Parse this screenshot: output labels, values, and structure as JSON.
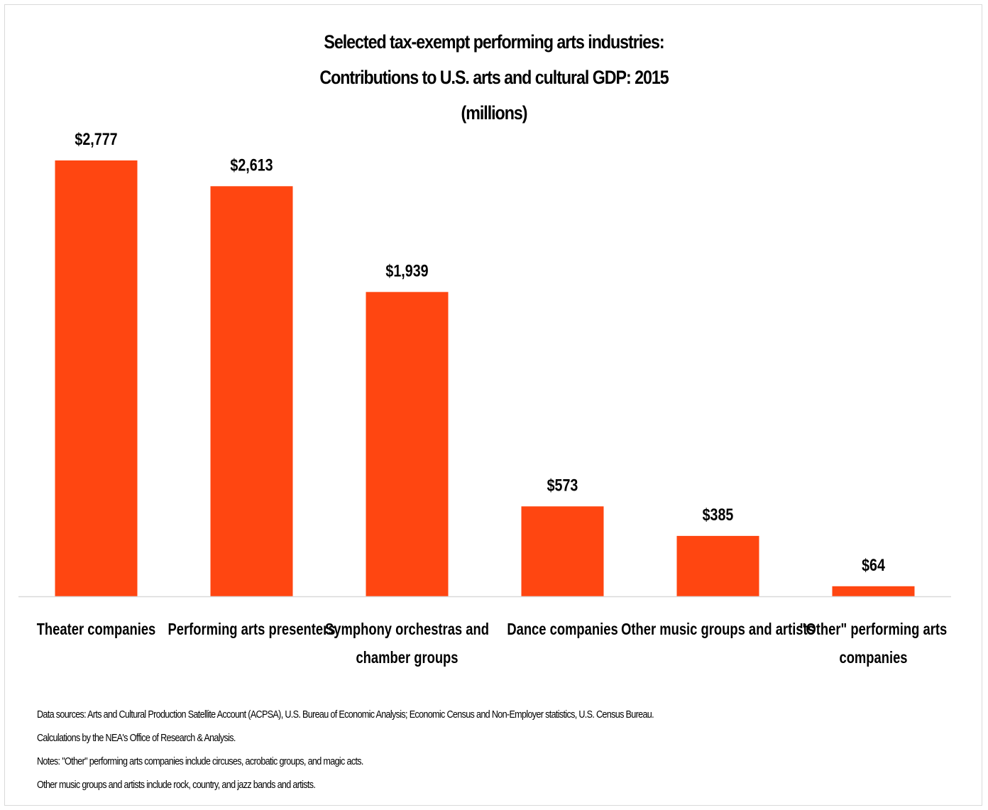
{
  "chart_data": {
    "type": "bar",
    "title": "Selected tax-exempt performing arts industries:",
    "subtitle": "Contributions to U.S. arts and cultural GDP: 2015",
    "unit_line": "(millions)",
    "categories": [
      "Theater companies",
      "Performing arts presenters",
      "Symphony orchestras and chamber groups",
      "Dance companies",
      "Other music groups and artists",
      "\"Other\" performing arts companies"
    ],
    "category_lines": [
      [
        "Theater companies"
      ],
      [
        "Performing arts presenters"
      ],
      [
        "Symphony orchestras and",
        "chamber groups"
      ],
      [
        "Dance companies"
      ],
      [
        "Other music groups and artists"
      ],
      [
        "\"Other\" performing arts",
        "companies"
      ]
    ],
    "values": [
      2777,
      2613,
      1939,
      573,
      385,
      64
    ],
    "data_labels": [
      "$2,777",
      "$2,613",
      "$1,939",
      "$573",
      "$385",
      "$64"
    ],
    "ylim": [
      0,
      2777
    ],
    "grid": false,
    "legend": "none",
    "bar_color": "#ff4611"
  },
  "notes": [
    "Data sources: Arts and Cultural Production Satellite Account (ACPSA), U.S. Bureau of Economic Analysis; Economic Census and Non-Employer statistics, U.S. Census Bureau.",
    "Calculations by the NEA's Office of Research & Analysis.",
    "Notes: \"Other\" performing arts companies include circuses, acrobatic groups, and magic acts.",
    "Other music groups and artists include rock, country, and jazz bands and artists."
  ]
}
